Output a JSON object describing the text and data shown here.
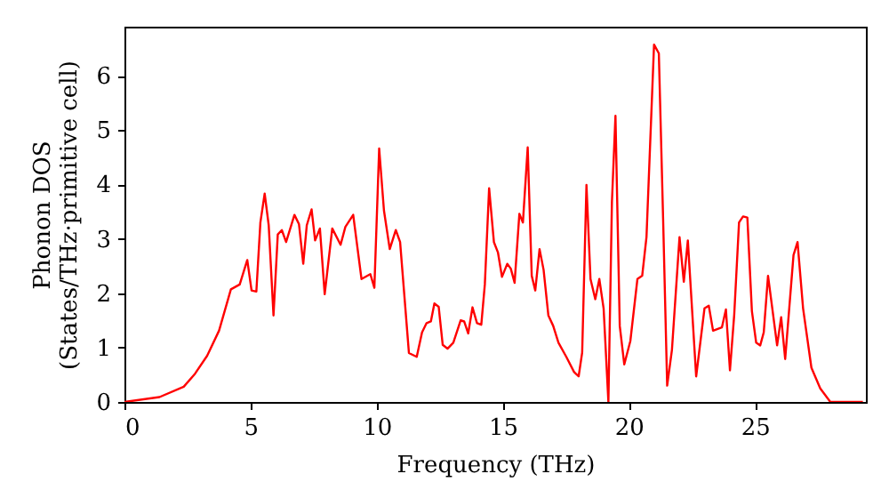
{
  "chart_data": {
    "type": "line",
    "xlabel": "Frequency (THz)",
    "ylabel": "Phonon DOS\n(States/THz·primitive cell)",
    "xlim": [
      0,
      29.4
    ],
    "ylim": [
      0,
      6.9
    ],
    "xticks": [
      0,
      5,
      10,
      15,
      20,
      25
    ],
    "yticks": [
      0,
      1,
      2,
      3,
      4,
      5,
      6
    ],
    "grid": false,
    "marker": "none",
    "line_style": "solid",
    "x": [
      0,
      1.39,
      2.35,
      2.8,
      3.28,
      3.75,
      4.22,
      4.57,
      4.87,
      5.04,
      5.23,
      5.39,
      5.56,
      5.72,
      5.91,
      6.08,
      6.24,
      6.41,
      6.74,
      6.92,
      7.09,
      7.23,
      7.42,
      7.56,
      7.75,
      7.94,
      8.24,
      8.57,
      8.76,
      9.07,
      9.4,
      9.75,
      9.91,
      10.1,
      10.29,
      10.52,
      10.76,
      10.93,
      11.28,
      11.59,
      11.8,
      11.98,
      12.15,
      12.29,
      12.46,
      12.62,
      12.81,
      13.04,
      13.33,
      13.47,
      13.63,
      13.8,
      13.98,
      14.15,
      14.29,
      14.46,
      14.65,
      14.81,
      14.97,
      15.18,
      15.32,
      15.47,
      15.66,
      15.8,
      15.99,
      16.15,
      16.29,
      16.46,
      16.62,
      16.81,
      17.0,
      17.21,
      17.52,
      17.83,
      18.01,
      18.15,
      18.32,
      18.48,
      18.67,
      18.83,
      19.0,
      19.19,
      19.33,
      19.47,
      19.64,
      19.82,
      20.06,
      20.34,
      20.53,
      20.7,
      21.0,
      21.19,
      21.36,
      21.52,
      21.71,
      22.01,
      22.18,
      22.34,
      22.67,
      23.0,
      23.17,
      23.34,
      23.69,
      23.85,
      24.01,
      24.18,
      24.37,
      24.53,
      24.7,
      24.88,
      25.05,
      25.21,
      25.35,
      25.52,
      25.88,
      26.04,
      26.2,
      26.53,
      26.69,
      26.91,
      27.24,
      27.59,
      27.99,
      29.28
    ],
    "series": [
      {
        "color": "#ff0000",
        "values": [
          0,
          0.09,
          0.28,
          0.52,
          0.85,
          1.31,
          2.07,
          2.16,
          2.61,
          2.05,
          2.03,
          3.3,
          3.83,
          3.25,
          1.59,
          3.08,
          3.16,
          2.94,
          3.44,
          3.27,
          2.54,
          3.25,
          3.54,
          2.97,
          3.19,
          1.98,
          3.19,
          2.89,
          3.22,
          3.44,
          2.26,
          2.35,
          2.1,
          4.66,
          3.52,
          2.81,
          3.16,
          2.94,
          0.9,
          0.83,
          1.28,
          1.45,
          1.48,
          1.81,
          1.75,
          1.05,
          0.98,
          1.09,
          1.5,
          1.48,
          1.26,
          1.74,
          1.45,
          1.42,
          2.16,
          3.93,
          2.94,
          2.75,
          2.3,
          2.54,
          2.45,
          2.19,
          3.46,
          3.3,
          4.68,
          2.32,
          2.05,
          2.81,
          2.43,
          1.59,
          1.4,
          1.09,
          0.83,
          0.55,
          0.47,
          0.91,
          3.99,
          2.26,
          1.89,
          2.26,
          1.72,
          0,
          3.68,
          5.26,
          1.4,
          0.69,
          1.12,
          2.26,
          2.32,
          3.03,
          6.57,
          6.41,
          3.36,
          0.3,
          0.96,
          3.03,
          2.21,
          2.97,
          0.47,
          1.72,
          1.77,
          1.31,
          1.37,
          1.7,
          0.58,
          1.61,
          3.3,
          3.41,
          3.39,
          1.67,
          1.09,
          1.04,
          1.28,
          2.32,
          1.04,
          1.56,
          0.79,
          2.7,
          2.94,
          1.72,
          0.63,
          0.25,
          0,
          0
        ]
      }
    ]
  }
}
